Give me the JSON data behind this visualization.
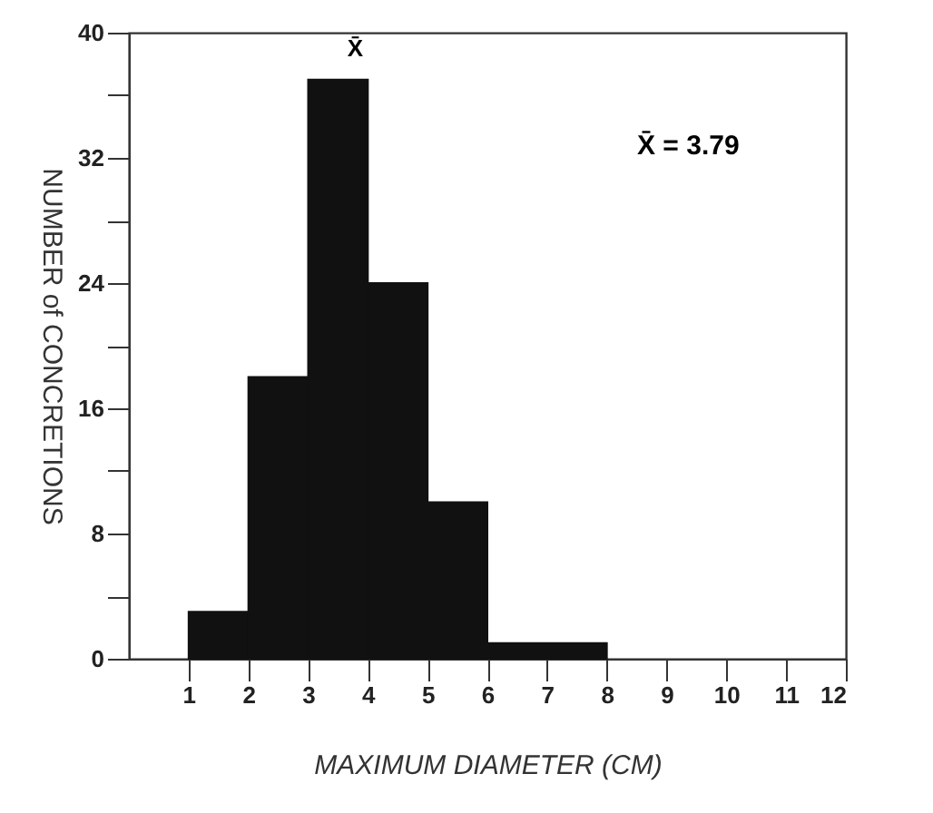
{
  "chart_data": {
    "type": "histogram",
    "xlabel": "MAXIMUM   DIAMETER   (CM)",
    "ylabel": "NUMBER  of  CONCRETIONS",
    "bins": [
      1,
      2,
      3,
      4,
      5,
      6,
      8
    ],
    "values": [
      3,
      18,
      37,
      24,
      10,
      1
    ],
    "color": "#111111",
    "xlim": [
      0,
      12
    ],
    "xticks": [
      1,
      2,
      3,
      4,
      5,
      6,
      7,
      8,
      9,
      10,
      11,
      12
    ],
    "ylim": [
      0,
      40
    ],
    "yticks": [
      0,
      {
        "value": 4,
        "label": null
      },
      8,
      {
        "value": 12,
        "label": null
      },
      16,
      {
        "value": 20,
        "label": null
      },
      24,
      {
        "value": 28,
        "label": null
      },
      32,
      {
        "value": 36,
        "label": null
      },
      40
    ],
    "annotations": [
      {
        "text": "X̄",
        "x": 3.79,
        "y": 37
      },
      "X̄ = 3.79"
    ],
    "grid": false
  }
}
